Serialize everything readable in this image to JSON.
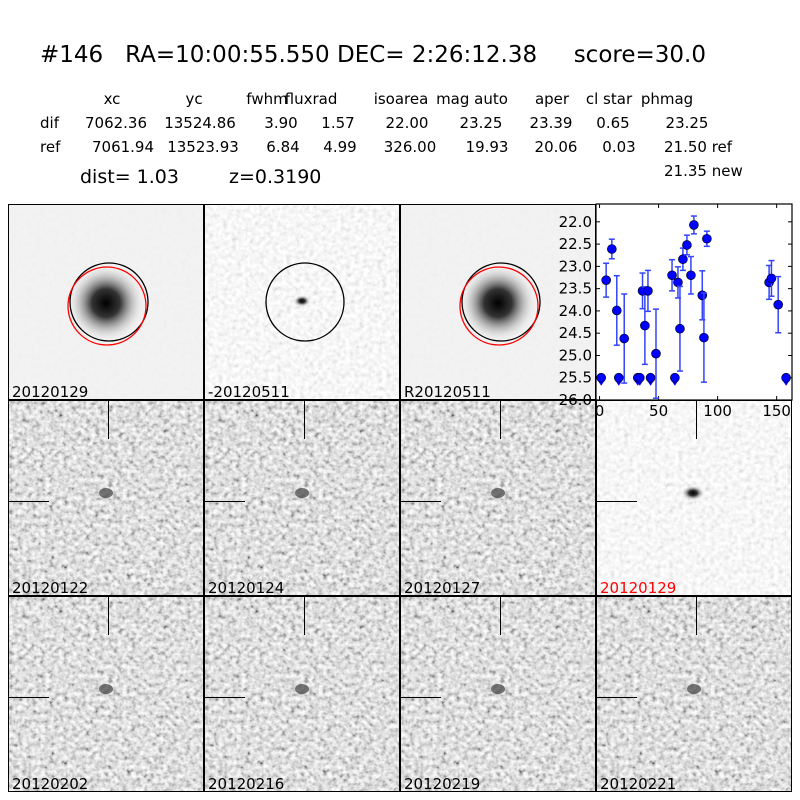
{
  "title": {
    "id": "#146",
    "ra": "RA=10:00:55.550",
    "dec": "DEC= 2:26:12.38",
    "score": "score=30.0"
  },
  "table": {
    "headers": [
      "xc",
      "yc",
      "fwhm",
      "fluxrad",
      "isoarea",
      "mag auto",
      "aper",
      "cl star",
      "phmag"
    ],
    "rows": [
      {
        "label": "dif",
        "values": [
          "7062.36",
          "13524.86",
          "3.90",
          "1.57",
          "22.00",
          "23.25",
          "23.39",
          "0.65",
          "23.25"
        ]
      },
      {
        "label": "ref",
        "values": [
          "7061.94",
          "13523.93",
          "6.84",
          "4.99",
          "326.00",
          "19.93",
          "20.06",
          "0.03",
          "21.50 ref"
        ]
      }
    ],
    "extra": "21.35 new",
    "dist": "dist=  1.03",
    "z": "z=0.3190"
  },
  "thumbnails": [
    {
      "label": "20120129",
      "style": "ref",
      "circles": [
        "black",
        "red"
      ]
    },
    {
      "label": "-20120511",
      "style": "dif",
      "circles": [
        "black"
      ]
    },
    {
      "label": "R20120511",
      "style": "ref",
      "circles": [
        "black",
        "red"
      ]
    },
    {
      "label": "20120122",
      "style": "noise"
    },
    {
      "label": "20120124",
      "style": "noise"
    },
    {
      "label": "20120127",
      "style": "noise"
    },
    {
      "label": "20120129",
      "style": "light",
      "label_color": "#ff0000"
    },
    {
      "label": "20120202",
      "style": "noise"
    },
    {
      "label": "20120216",
      "style": "noise"
    },
    {
      "label": "20120219",
      "style": "noise"
    },
    {
      "label": "20120221",
      "style": "noise"
    }
  ],
  "chart_data": {
    "type": "scatter",
    "xlim": [
      -3,
      163
    ],
    "ylim": [
      26.0,
      21.6
    ],
    "y_inverted": true,
    "xticks": [
      "0",
      "50",
      "100",
      "150"
    ],
    "yticks": [
      "22.0",
      "22.5",
      "23.0",
      "23.5",
      "24.0",
      "24.5",
      "25.0",
      "25.5",
      "26.0"
    ],
    "color": "#0000ff",
    "points": [
      {
        "x": 5.6,
        "y": 23.31,
        "err": 0.38
      },
      {
        "x": 10.4,
        "y": 22.61,
        "err": 0.22
      },
      {
        "x": 14.6,
        "y": 23.99,
        "err": 0.78
      },
      {
        "x": 20.9,
        "y": 24.62,
        "err": 1.0
      },
      {
        "x": 36.4,
        "y": 23.55,
        "err": 0.4
      },
      {
        "x": 38.4,
        "y": 24.33,
        "err": 0.87
      },
      {
        "x": 41,
        "y": 23.55,
        "err": 0.46
      },
      {
        "x": 47.8,
        "y": 24.96,
        "err": 1.0
      },
      {
        "x": 61.4,
        "y": 23.2,
        "err": 0.35
      },
      {
        "x": 66.4,
        "y": 23.36,
        "err": 0.35
      },
      {
        "x": 68.1,
        "y": 24.4,
        "err": 0.95
      },
      {
        "x": 70.6,
        "y": 22.84,
        "err": 0.25
      },
      {
        "x": 74,
        "y": 22.52,
        "err": 0.22
      },
      {
        "x": 77.4,
        "y": 23.2,
        "err": 0.42
      },
      {
        "x": 79.9,
        "y": 22.07,
        "err": 0.2
      },
      {
        "x": 87,
        "y": 23.65,
        "err": 0.55
      },
      {
        "x": 88.4,
        "y": 24.6,
        "err": 1.0
      },
      {
        "x": 90.9,
        "y": 22.38,
        "err": 0.17
      },
      {
        "x": 143.6,
        "y": 23.36,
        "err": 0.38
      },
      {
        "x": 145.6,
        "y": 23.27,
        "err": 0.4
      },
      {
        "x": 151.3,
        "y": 23.86,
        "err": 0.63
      }
    ],
    "upper_limits": [
      {
        "x": 1.4,
        "y": 25.5
      },
      {
        "x": 16.3,
        "y": 25.5
      },
      {
        "x": 32.4,
        "y": 25.5
      },
      {
        "x": 34.1,
        "y": 25.5
      },
      {
        "x": 43.2,
        "y": 25.5
      },
      {
        "x": 63.8,
        "y": 25.5
      },
      {
        "x": 158,
        "y": 25.5
      }
    ]
  }
}
